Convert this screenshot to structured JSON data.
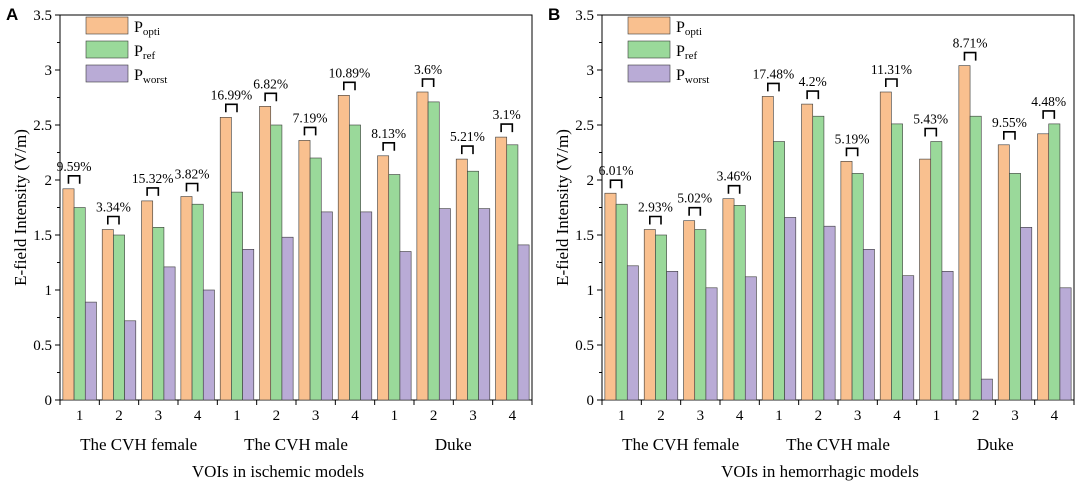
{
  "colors": {
    "popti": "#f9c08f",
    "pref": "#9ad99a",
    "pworst": "#b9abd6",
    "axis": "#000000"
  },
  "chart_data": [
    {
      "panel_label": "A",
      "type": "bar",
      "ylabel": "E-field Intensity (V/m)",
      "xlabel": "VOIs in ischemic models",
      "ylim": [
        0,
        3.5
      ],
      "yticks": [
        "0",
        "0.5",
        "1",
        "1.5",
        "2",
        "2.5",
        "3",
        "3.5"
      ],
      "categories": [
        "1",
        "2",
        "3",
        "4",
        "1",
        "2",
        "3",
        "4",
        "1",
        "2",
        "3",
        "4"
      ],
      "groups": [
        "The CVH female",
        "The CVH male",
        "Duke"
      ],
      "series": [
        {
          "name": "P",
          "sub": "opti",
          "values": [
            1.92,
            1.55,
            1.81,
            1.85,
            2.57,
            2.67,
            2.36,
            2.77,
            2.22,
            2.8,
            2.19,
            2.39
          ]
        },
        {
          "name": "P",
          "sub": "ref",
          "values": [
            1.75,
            1.5,
            1.57,
            1.78,
            1.89,
            2.5,
            2.2,
            2.5,
            2.05,
            2.71,
            2.08,
            2.32
          ]
        },
        {
          "name": "P",
          "sub": "worst",
          "values": [
            0.89,
            0.72,
            1.21,
            1.0,
            1.37,
            1.48,
            1.71,
            1.71,
            1.35,
            1.74,
            1.74,
            1.41
          ]
        }
      ],
      "annotations": [
        "9.59%",
        "3.34%",
        "15.32%",
        "3.82%",
        "16.99%",
        "6.82%",
        "7.19%",
        "10.89%",
        "8.13%",
        "3.6%",
        "5.21%",
        "3.1%"
      ]
    },
    {
      "panel_label": "B",
      "type": "bar",
      "ylabel": "E-field Intensity (V/m)",
      "xlabel": "VOIs in hemorrhagic models",
      "ylim": [
        0,
        3.5
      ],
      "yticks": [
        "0",
        "0.5",
        "1",
        "1.5",
        "2",
        "2.5",
        "3",
        "3.5"
      ],
      "categories": [
        "1",
        "2",
        "3",
        "4",
        "1",
        "2",
        "3",
        "4",
        "1",
        "2",
        "3",
        "4"
      ],
      "groups": [
        "The CVH female",
        "The CVH male",
        "Duke"
      ],
      "series": [
        {
          "name": "P",
          "sub": "opti",
          "values": [
            1.88,
            1.55,
            1.63,
            1.83,
            2.76,
            2.69,
            2.17,
            2.8,
            2.19,
            3.04,
            2.32,
            2.42
          ]
        },
        {
          "name": "P",
          "sub": "ref",
          "values": [
            1.78,
            1.5,
            1.55,
            1.77,
            2.35,
            2.58,
            2.06,
            2.51,
            2.35,
            2.58,
            2.06,
            2.51
          ]
        },
        {
          "name": "P",
          "sub": "worst",
          "values": [
            1.22,
            1.17,
            1.02,
            1.12,
            1.66,
            1.58,
            1.37,
            1.13,
            1.17,
            0.19,
            1.57,
            1.02
          ]
        }
      ],
      "annotations": [
        "6.01%",
        "2.93%",
        "5.02%",
        "3.46%",
        "17.48%",
        "4.2%",
        "5.19%",
        "11.31%",
        "5.43%",
        "8.71%",
        "9.55%",
        "4.48%"
      ]
    }
  ]
}
